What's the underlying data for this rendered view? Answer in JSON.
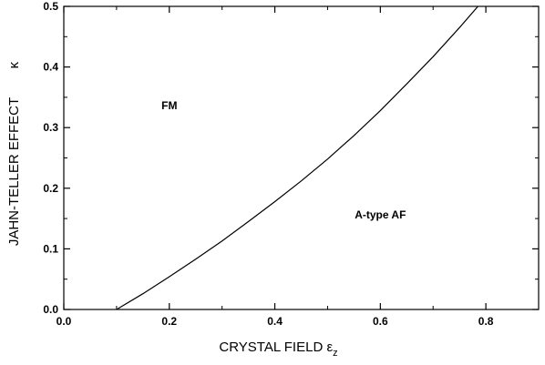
{
  "chart_data": {
    "type": "line",
    "title": "",
    "xlabel": "CRYSTAL FIELD ε",
    "xlabel_sub": "z",
    "ylabel": "JAHN-TELLER EFFECT",
    "ylabel_symbol": "κ",
    "xlim": [
      0.0,
      0.9
    ],
    "ylim": [
      0.0,
      0.5
    ],
    "x_ticks": [
      0.0,
      0.2,
      0.4,
      0.6,
      0.8
    ],
    "x_tick_labels": [
      "0.0",
      "0.2",
      "0.4",
      "0.6",
      "0.8"
    ],
    "y_ticks": [
      0.0,
      0.1,
      0.2,
      0.3,
      0.4,
      0.5
    ],
    "y_tick_labels": [
      "0.0",
      "0.1",
      "0.2",
      "0.3",
      "0.4",
      "0.5"
    ],
    "grid": false,
    "series": [
      {
        "x": [
          0.1,
          0.15,
          0.2,
          0.25,
          0.3,
          0.35,
          0.4,
          0.45,
          0.5,
          0.55,
          0.6,
          0.65,
          0.7,
          0.75,
          0.785
        ],
        "y": [
          0.0,
          0.026,
          0.054,
          0.083,
          0.113,
          0.145,
          0.178,
          0.212,
          0.248,
          0.287,
          0.328,
          0.372,
          0.417,
          0.465,
          0.5
        ],
        "color": "#000000"
      }
    ],
    "annotations": [
      {
        "text": "FM",
        "x": 0.2,
        "y": 0.33
      },
      {
        "text": "A-type AF",
        "x": 0.6,
        "y": 0.15
      }
    ]
  }
}
